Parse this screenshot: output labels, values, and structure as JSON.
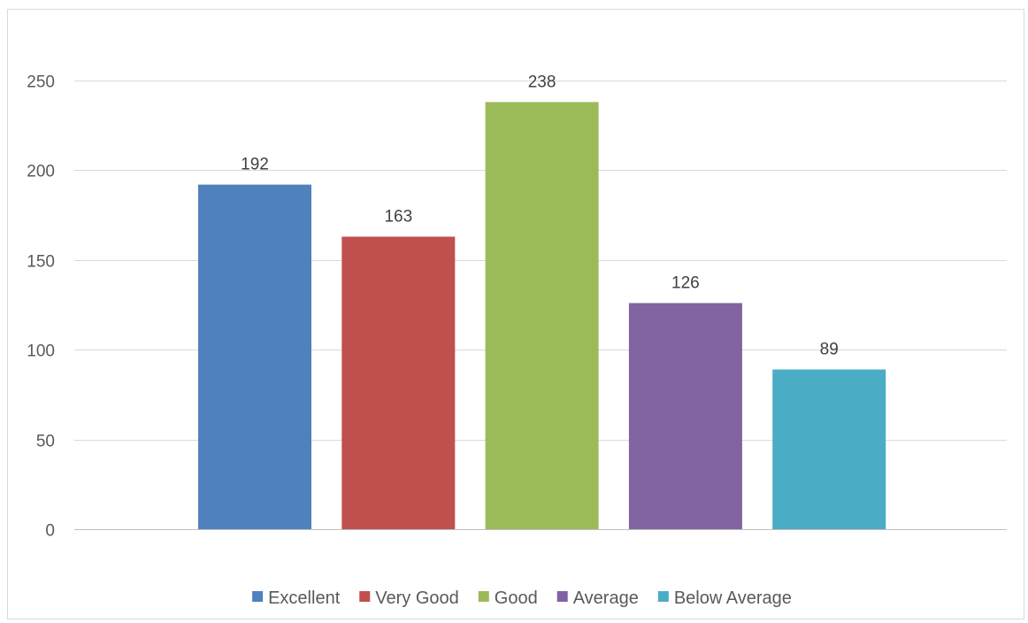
{
  "chart_data": {
    "type": "bar",
    "title": "",
    "xlabel": "",
    "ylabel": "",
    "ylim": [
      0,
      250
    ],
    "yticks": [
      0,
      50,
      100,
      150,
      200,
      250
    ],
    "grid": true,
    "legend_position": "bottom",
    "categories": [
      "Excellent",
      "Very Good",
      "Good",
      "Average",
      "Below Average"
    ],
    "values": [
      192,
      163,
      238,
      126,
      89
    ],
    "colors": [
      "#4f81bd",
      "#c0504d",
      "#9bbb59",
      "#8064a2",
      "#4bacc6"
    ]
  }
}
